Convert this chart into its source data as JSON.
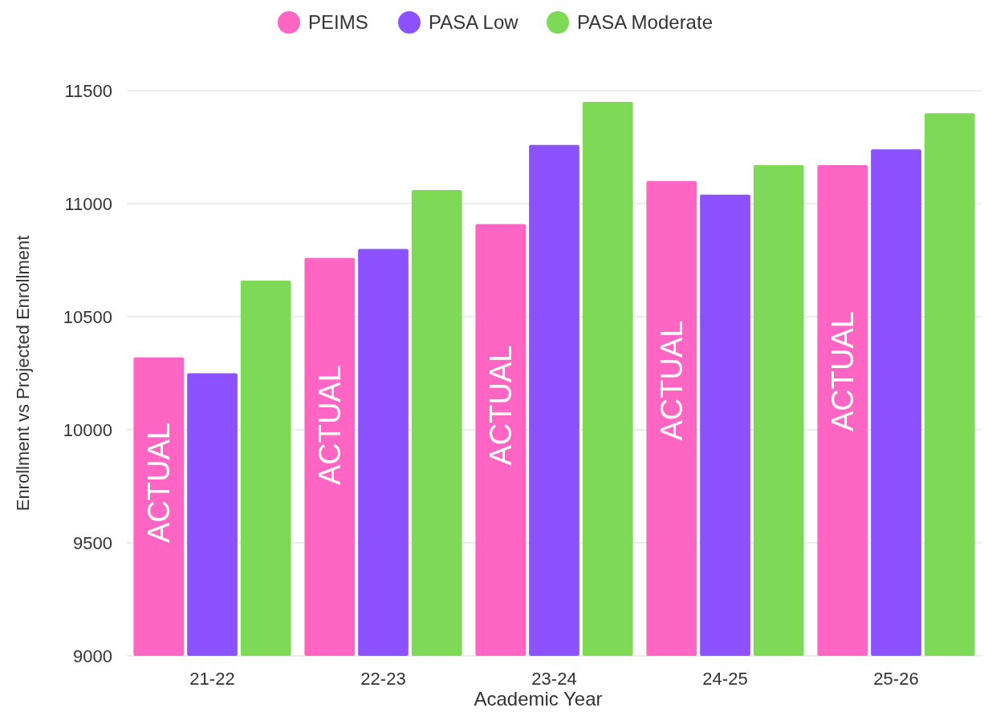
{
  "chart_data": {
    "type": "bar",
    "xlabel": "Academic Year",
    "ylabel": "Enrollment vs Projected Enrollment",
    "categories": [
      "21-22",
      "22-23",
      "23-24",
      "24-25",
      "25-26"
    ],
    "series": [
      {
        "name": "PEIMS",
        "color": "#ff66c4",
        "values": [
          10320,
          10760,
          10910,
          11100,
          11170
        ]
      },
      {
        "name": "PASA Low",
        "color": "#8c52ff",
        "values": [
          10250,
          10800,
          11260,
          11040,
          11240
        ]
      },
      {
        "name": "PASA Moderate",
        "color": "#7ed957",
        "values": [
          10660,
          11060,
          11450,
          11170,
          11400
        ]
      }
    ],
    "ylim": [
      9000,
      11500
    ],
    "yticks": [
      9000,
      9500,
      10000,
      10500,
      11000,
      11500
    ],
    "grid": "y",
    "legend": "top",
    "annotations": [
      "ACTUAL",
      "ACTUAL",
      "ACTUAL",
      "ACTUAL",
      "ACTUAL"
    ]
  }
}
